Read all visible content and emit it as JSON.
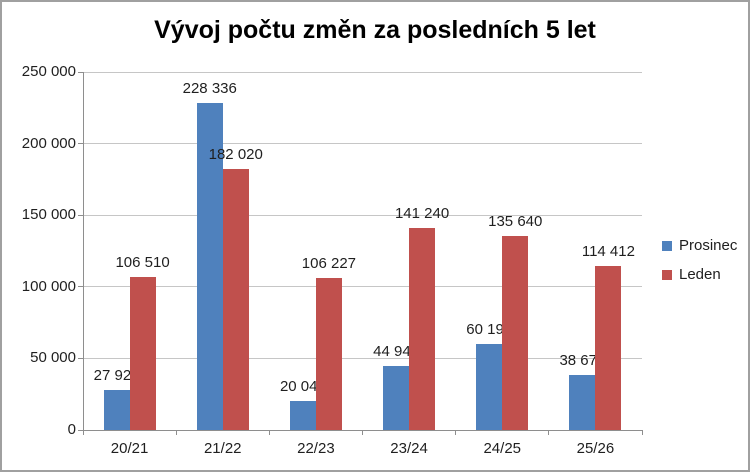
{
  "chart": {
    "title": "Vývoj počtu změn za posledních 5 let"
  },
  "chart_data": {
    "type": "bar",
    "title": "Vývoj počtu změn za posledních 5 let",
    "categories": [
      "20/21",
      "21/22",
      "22/23",
      "23/24",
      "24/25",
      "25/26"
    ],
    "series": [
      {
        "name": "Prosinec",
        "color": "#4F81BD",
        "values": [
          27926,
          228336,
          20045,
          44944,
          60193,
          38678
        ]
      },
      {
        "name": "Leden",
        "color": "#C0504D",
        "values": [
          106510,
          182020,
          106227,
          141240,
          135640,
          114412
        ]
      }
    ],
    "xlabel": "",
    "ylabel": "",
    "ylim": [
      0,
      250000
    ],
    "ytick_step": 50000,
    "ytick_labels": [
      "0",
      "50 000",
      "100 000",
      "150 000",
      "200 000",
      "250 000"
    ],
    "grid": true,
    "legend_position": "right",
    "data_labels": true,
    "number_format": "space-thousands",
    "colors": {
      "gridline": "#c6c6c6",
      "axis": "#8e8e8e",
      "text": "#1f1f1f",
      "border": "#a0a0a0",
      "background": "#ffffff"
    }
  }
}
